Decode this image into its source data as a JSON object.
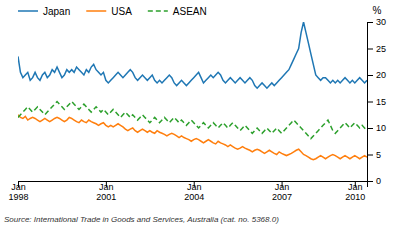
{
  "chart_data": {
    "type": "line",
    "y_label": "%",
    "annotations": [
      "Source: International Trade in Goods and Services, Australia (cat. no. 5368.0)"
    ],
    "categories": [
      "Jan\n1998",
      null,
      null,
      null,
      null,
      null,
      null,
      null,
      null,
      null,
      null,
      null,
      null,
      null,
      null,
      null,
      null,
      null,
      null,
      null,
      null,
      null,
      null,
      null,
      null,
      null,
      null,
      null,
      null,
      null,
      null,
      null,
      null,
      null,
      null,
      null,
      "Jan\n2001",
      null,
      null,
      null,
      null,
      null,
      null,
      null,
      null,
      null,
      null,
      null,
      null,
      null,
      null,
      null,
      null,
      null,
      null,
      null,
      null,
      null,
      null,
      null,
      null,
      null,
      null,
      null,
      null,
      null,
      null,
      null,
      null,
      null,
      null,
      null,
      "Jan\n2004",
      null,
      null,
      null,
      null,
      null,
      null,
      null,
      null,
      null,
      null,
      null,
      null,
      null,
      null,
      null,
      null,
      null,
      null,
      null,
      null,
      null,
      null,
      null,
      null,
      null,
      null,
      null,
      null,
      null,
      null,
      null,
      null,
      null,
      null,
      null,
      "Jan\n2007",
      null,
      null,
      null,
      null,
      null,
      null,
      null,
      null,
      null,
      null,
      null,
      null,
      null,
      null,
      null,
      null,
      null,
      null,
      null,
      null,
      null,
      null,
      null,
      null,
      null,
      null,
      null,
      null,
      null,
      "Jan\n2010",
      null,
      null,
      null,
      null,
      null
    ],
    "series": [
      {
        "name": "Japan",
        "line_style": "solid",
        "values": [
          23.5,
          20.5,
          19.5,
          20.0,
          20.5,
          19.0,
          19.5,
          20.5,
          19.5,
          19.0,
          20.0,
          20.5,
          19.5,
          20.0,
          21.0,
          20.5,
          21.5,
          20.5,
          19.5,
          20.0,
          21.0,
          20.5,
          21.0,
          20.5,
          21.5,
          21.0,
          20.5,
          20.0,
          21.0,
          20.5,
          21.5,
          22.0,
          21.0,
          20.5,
          20.0,
          20.5,
          19.0,
          18.5,
          19.0,
          19.5,
          20.0,
          20.5,
          20.0,
          19.5,
          20.0,
          20.5,
          21.0,
          20.5,
          19.5,
          19.0,
          19.5,
          20.0,
          19.5,
          19.0,
          19.5,
          20.0,
          19.0,
          18.5,
          19.0,
          18.5,
          19.0,
          19.5,
          20.0,
          19.5,
          18.5,
          18.0,
          18.5,
          19.0,
          18.5,
          18.0,
          18.5,
          19.0,
          19.5,
          20.0,
          20.5,
          19.5,
          18.5,
          19.0,
          19.5,
          20.0,
          19.5,
          20.0,
          20.5,
          20.0,
          19.0,
          18.5,
          19.0,
          19.5,
          19.0,
          18.5,
          19.0,
          19.5,
          19.0,
          18.5,
          19.0,
          19.5,
          19.0,
          18.0,
          17.5,
          18.0,
          18.5,
          18.0,
          17.5,
          18.0,
          18.5,
          18.0,
          18.5,
          19.0,
          19.5,
          20.0,
          20.5,
          21.0,
          22.0,
          23.0,
          24.0,
          25.0,
          28.0,
          30.0,
          28.0,
          26.0,
          24.0,
          22.0,
          20.0,
          19.5,
          19.0,
          19.5,
          19.5,
          19.0,
          18.5,
          19.0,
          18.5,
          19.0,
          18.5,
          19.0,
          19.5,
          19.0,
          18.5,
          19.0,
          18.5,
          19.0,
          19.5,
          19.0,
          18.5,
          19.0
        ]
      },
      {
        "name": "USA",
        "line_style": "solid",
        "values": [
          12.5,
          12.0,
          11.8,
          12.2,
          11.5,
          11.8,
          12.0,
          11.8,
          11.5,
          11.2,
          11.5,
          11.8,
          11.5,
          11.2,
          11.5,
          11.8,
          12.0,
          11.8,
          11.5,
          11.2,
          11.5,
          12.0,
          11.8,
          11.5,
          11.2,
          11.0,
          11.5,
          11.2,
          11.0,
          11.5,
          11.2,
          11.0,
          10.8,
          10.5,
          10.8,
          11.0,
          10.5,
          10.2,
          10.5,
          10.2,
          10.5,
          10.8,
          10.5,
          10.2,
          9.8,
          9.5,
          9.8,
          10.0,
          9.5,
          9.2,
          9.5,
          9.8,
          9.5,
          9.2,
          9.5,
          9.2,
          9.0,
          9.5,
          9.2,
          9.0,
          8.8,
          8.5,
          8.8,
          9.0,
          8.8,
          8.5,
          8.2,
          8.5,
          8.2,
          8.0,
          7.8,
          7.5,
          7.8,
          8.0,
          7.8,
          7.5,
          7.2,
          7.5,
          7.8,
          7.5,
          7.2,
          7.0,
          7.5,
          7.2,
          7.0,
          6.8,
          6.5,
          6.8,
          6.5,
          6.2,
          6.0,
          6.2,
          6.5,
          6.2,
          6.0,
          5.8,
          5.5,
          5.8,
          6.0,
          5.8,
          5.5,
          5.2,
          5.5,
          5.8,
          5.5,
          5.2,
          5.0,
          5.5,
          5.2,
          5.0,
          4.8,
          5.0,
          5.2,
          5.5,
          5.8,
          6.0,
          5.5,
          5.0,
          4.8,
          4.5,
          4.2,
          4.0,
          4.2,
          4.5,
          4.8,
          4.5,
          4.2,
          4.5,
          4.8,
          5.0,
          4.8,
          4.5,
          4.2,
          4.5,
          4.8,
          4.5,
          4.2,
          4.5,
          4.8,
          4.5,
          4.2,
          4.5,
          4.8,
          4.5
        ]
      },
      {
        "name": "ASEAN",
        "line_style": "dashed",
        "values": [
          12.0,
          12.5,
          13.0,
          13.5,
          14.0,
          13.5,
          13.0,
          13.5,
          14.0,
          13.5,
          13.0,
          12.5,
          13.0,
          13.5,
          14.0,
          14.5,
          15.0,
          14.5,
          14.0,
          13.5,
          14.0,
          14.5,
          15.0,
          14.5,
          14.0,
          13.5,
          14.0,
          14.5,
          14.0,
          13.5,
          13.0,
          13.5,
          14.0,
          13.5,
          13.0,
          13.5,
          13.0,
          12.5,
          13.0,
          13.5,
          13.0,
          12.5,
          12.0,
          12.5,
          13.0,
          12.5,
          12.0,
          12.5,
          12.0,
          11.5,
          12.0,
          12.5,
          12.0,
          11.5,
          11.0,
          11.5,
          12.0,
          11.5,
          11.0,
          11.5,
          12.0,
          11.5,
          11.0,
          11.5,
          12.0,
          11.5,
          11.0,
          11.5,
          11.0,
          10.5,
          11.0,
          11.5,
          11.0,
          10.5,
          10.0,
          10.5,
          11.0,
          10.5,
          10.0,
          10.5,
          11.0,
          10.5,
          10.0,
          10.5,
          11.0,
          10.5,
          10.0,
          10.5,
          11.0,
          10.5,
          10.0,
          9.5,
          10.0,
          10.5,
          10.0,
          9.5,
          9.0,
          9.5,
          10.0,
          9.5,
          9.0,
          9.5,
          10.0,
          9.5,
          9.0,
          9.5,
          10.0,
          9.5,
          9.0,
          9.5,
          10.0,
          10.5,
          11.0,
          11.5,
          11.0,
          10.5,
          10.0,
          9.5,
          9.0,
          8.5,
          8.0,
          8.5,
          9.0,
          9.5,
          10.0,
          10.5,
          11.0,
          11.5,
          10.5,
          9.5,
          9.0,
          9.5,
          10.0,
          10.5,
          11.0,
          10.5,
          10.0,
          10.5,
          11.0,
          10.5,
          10.0,
          10.5,
          10.0,
          9.5
        ]
      }
    ],
    "ylim": [
      0,
      30
    ],
    "yticks": [
      0,
      5,
      10,
      15,
      20,
      25,
      30
    ],
    "grid": false,
    "legend": "top"
  }
}
